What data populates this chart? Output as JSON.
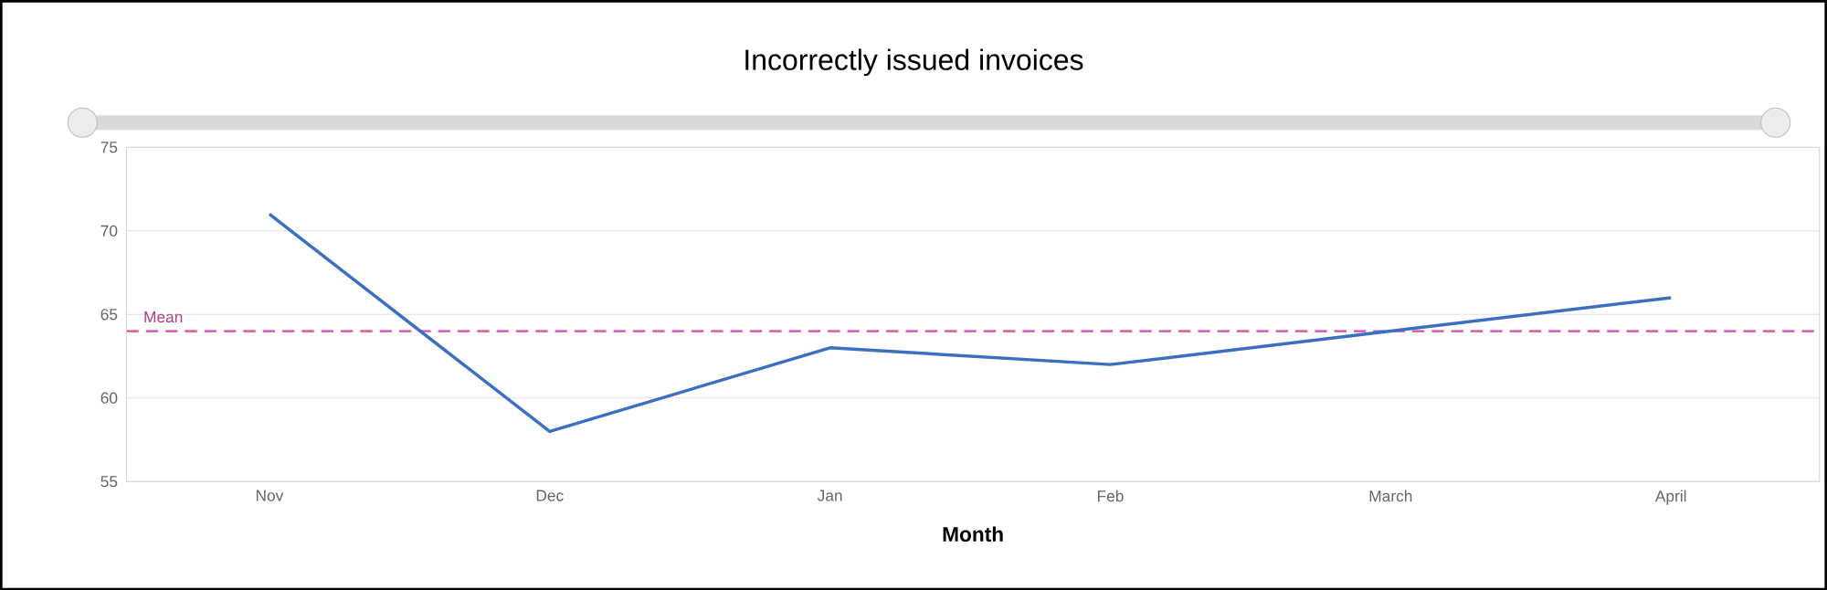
{
  "chart_data": {
    "type": "line",
    "title": "Incorrectly issued invoices",
    "xlabel": "Month",
    "categories": [
      "Nov",
      "Dec",
      "Jan",
      "Feb",
      "March",
      "April"
    ],
    "series": [
      {
        "color": "#3b6fc0",
        "values": [
          71,
          58,
          63,
          62,
          64,
          66
        ]
      }
    ],
    "ylim": [
      55,
      75
    ],
    "yticks": [
      55,
      60,
      65,
      70,
      75
    ],
    "grid": "y",
    "marker": "none",
    "line_style": "solid",
    "ref_lines": [
      {
        "axis": "y",
        "value": 64,
        "label": "Mean",
        "color": "#d94fa6",
        "line_style": "dashed"
      }
    ]
  }
}
